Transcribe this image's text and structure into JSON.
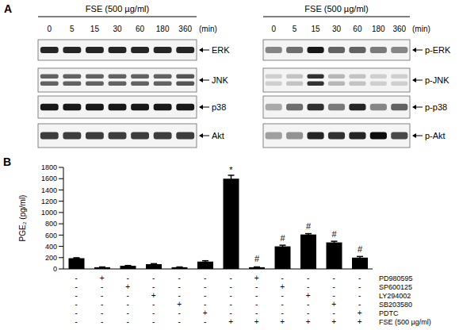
{
  "panel_labels": [
    "A",
    "B"
  ],
  "western_blot": {
    "treatment": "FSE (500 µg/ml)",
    "times": [
      0,
      5,
      15,
      30,
      60,
      180,
      360
    ],
    "time_unit": "(min)",
    "blots": [
      {
        "rows": [
          {
            "label": "ERK",
            "double": false,
            "intensity": [
              0.85,
              0.85,
              0.85,
              0.85,
              0.85,
              0.85,
              0.85
            ]
          },
          {
            "label": "JNK",
            "double": true,
            "intensity": [
              0.6,
              0.6,
              0.6,
              0.6,
              0.6,
              0.6,
              0.65
            ]
          },
          {
            "label": "p38",
            "double": false,
            "intensity": [
              0.9,
              0.9,
              0.9,
              0.9,
              0.9,
              0.9,
              0.9
            ]
          },
          {
            "label": "Akt",
            "double": false,
            "intensity": [
              0.75,
              0.75,
              0.75,
              0.75,
              0.75,
              0.75,
              0.75
            ]
          }
        ]
      },
      {
        "rows": [
          {
            "label": "p-ERK",
            "double": false,
            "intensity": [
              0.45,
              0.55,
              0.9,
              0.6,
              0.6,
              0.5,
              0.45
            ]
          },
          {
            "label": "p-JNK",
            "double": true,
            "intensity": [
              0.15,
              0.2,
              0.8,
              0.25,
              0.2,
              0.15,
              0.15
            ]
          },
          {
            "label": "p-p38",
            "double": false,
            "intensity": [
              0.3,
              0.55,
              0.8,
              0.5,
              0.85,
              0.45,
              0.6
            ]
          },
          {
            "label": "p-Akt",
            "double": false,
            "intensity": [
              0.35,
              0.4,
              0.85,
              0.8,
              0.85,
              0.95,
              0.7
            ]
          }
        ]
      }
    ]
  },
  "chart_data": {
    "type": "bar",
    "y_label": "PGE₂ (pg/ml)",
    "values": [
      190,
      30,
      55,
      85,
      30,
      130,
      1600,
      30,
      400,
      610,
      470,
      200
    ],
    "errors": [
      8,
      5,
      6,
      8,
      5,
      15,
      60,
      5,
      20,
      15,
      20,
      20
    ],
    "annotations": [
      null,
      null,
      null,
      null,
      null,
      null,
      "*",
      "#",
      "#",
      "#",
      "#",
      "#"
    ],
    "color": "#000000",
    "ylim": [
      0,
      1800
    ],
    "yticks": [
      0,
      200,
      400,
      600,
      800,
      1000,
      1200,
      1400,
      1600,
      1800
    ],
    "grid": false,
    "tick_labels": "y",
    "treatment_table": [
      {
        "label": "PD980595",
        "marks": [
          "-",
          "+",
          "-",
          "-",
          "-",
          "-",
          "-",
          "+",
          "-",
          "-",
          "-",
          "-"
        ]
      },
      {
        "label": "SP600125",
        "marks": [
          "-",
          "-",
          "+",
          "-",
          "-",
          "-",
          "-",
          "-",
          "+",
          "-",
          "-",
          "-"
        ]
      },
      {
        "label": "LY294002",
        "marks": [
          "-",
          "-",
          "-",
          "+",
          "-",
          "-",
          "-",
          "-",
          "-",
          "+",
          "-",
          "-"
        ]
      },
      {
        "label": "SB203580",
        "marks": [
          "-",
          "-",
          "-",
          "-",
          "+",
          "-",
          "-",
          "-",
          "-",
          "-",
          "+",
          "-"
        ]
      },
      {
        "label": "PDTC",
        "marks": [
          "-",
          "-",
          "-",
          "-",
          "-",
          "+",
          "-",
          "-",
          "-",
          "-",
          "-",
          "+"
        ]
      },
      {
        "label": "FSE (500 µg/ml)",
        "marks": [
          "-",
          "-",
          "-",
          "-",
          "-",
          "-",
          "+",
          "+",
          "+",
          "+",
          "+",
          "+"
        ]
      }
    ]
  }
}
